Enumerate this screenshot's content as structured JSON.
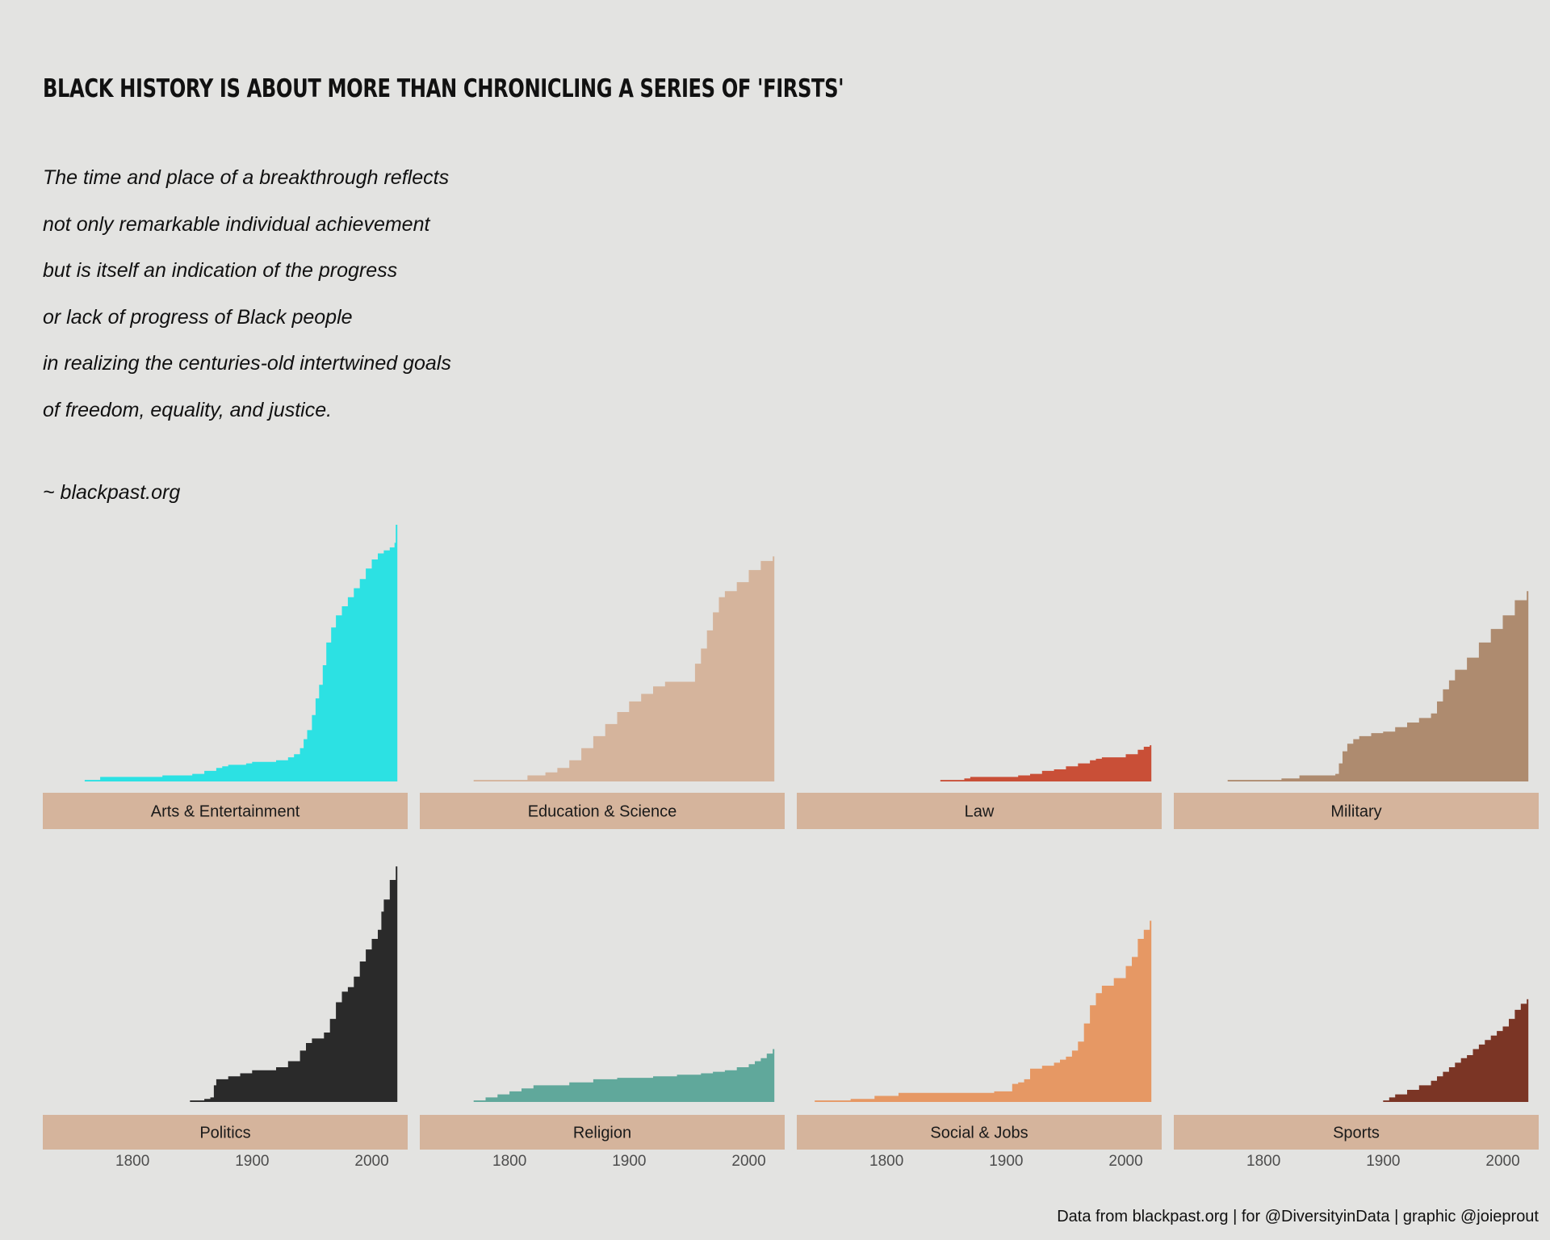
{
  "title": "BLACK HISTORY IS ABOUT MORE THAN CHRONICLING A SERIES OF 'FIRSTS'",
  "quote_lines": [
    "The time and place of a breakthrough reflects",
    "not only remarkable individual achievement",
    "but is itself an indication of the progress",
    "or lack of progress of Black people",
    "in realizing the centuries-old intertwined goals",
    "of freedom, equality, and justice."
  ],
  "source": "~ blackpast.org",
  "caption": "Data from blackpast.org | for @DiversityinData | graphic @joieprout",
  "colors": {
    "background": "#e3e3e1",
    "strip": "#d5b49c"
  },
  "chart_data": {
    "type": "area",
    "style": "step",
    "layout": "facet grid 2 rows x 4 columns, shared axes",
    "xlabel": "",
    "ylabel": "",
    "xlim": [
      1725,
      2030
    ],
    "ylim": [
      0,
      170
    ],
    "x_ticks": [
      1800,
      1900,
      2000
    ],
    "grid": false,
    "legend": "none",
    "series": [
      {
        "name": "Arts & Entertainment",
        "color": "#2ce1e3",
        "x": [
          1760,
          1773,
          1800,
          1825,
          1850,
          1860,
          1870,
          1875,
          1880,
          1895,
          1900,
          1920,
          1930,
          1935,
          1940,
          1943,
          1946,
          1950,
          1953,
          1956,
          1959,
          1962,
          1966,
          1970,
          1975,
          1980,
          1985,
          1990,
          1995,
          2000,
          2005,
          2010,
          2015,
          2019,
          2020
        ],
        "y": [
          1,
          3,
          3,
          4,
          5,
          7,
          9,
          10,
          11,
          12,
          13,
          14,
          16,
          18,
          22,
          28,
          34,
          44,
          55,
          64,
          77,
          92,
          102,
          110,
          116,
          122,
          128,
          134,
          141,
          147,
          151,
          153,
          155,
          158,
          170
        ]
      },
      {
        "name": "Education & Science",
        "color": "#d5b49c",
        "x": [
          1770,
          1800,
          1815,
          1830,
          1840,
          1850,
          1860,
          1870,
          1880,
          1890,
          1900,
          1910,
          1920,
          1930,
          1950,
          1955,
          1960,
          1965,
          1970,
          1975,
          1980,
          1990,
          2000,
          2010,
          2020
        ],
        "y": [
          1,
          1,
          4,
          6,
          9,
          14,
          22,
          30,
          38,
          46,
          53,
          58,
          63,
          66,
          66,
          78,
          88,
          100,
          112,
          122,
          126,
          132,
          140,
          146,
          149
        ]
      },
      {
        "name": "Law",
        "color": "#c94f37",
        "x": [
          1845,
          1865,
          1870,
          1890,
          1910,
          1920,
          1930,
          1940,
          1950,
          1960,
          1970,
          1975,
          1980,
          2000,
          2010,
          2015,
          2020
        ],
        "y": [
          1,
          2,
          3,
          3,
          4,
          5,
          7,
          8,
          10,
          12,
          14,
          15,
          16,
          18,
          21,
          23,
          24
        ]
      },
      {
        "name": "Military",
        "color": "#ae8b6f",
        "x": [
          1770,
          1800,
          1815,
          1830,
          1860,
          1863,
          1866,
          1870,
          1875,
          1880,
          1890,
          1900,
          1910,
          1920,
          1930,
          1940,
          1945,
          1950,
          1955,
          1960,
          1970,
          1980,
          1990,
          2000,
          2010,
          2020
        ],
        "y": [
          1,
          1,
          2,
          4,
          5,
          12,
          20,
          25,
          28,
          30,
          32,
          33,
          36,
          39,
          42,
          45,
          53,
          61,
          67,
          74,
          82,
          92,
          101,
          110,
          120,
          126
        ]
      },
      {
        "name": "Politics",
        "color": "#2a2a2a",
        "x": [
          1848,
          1860,
          1865,
          1868,
          1870,
          1880,
          1890,
          1900,
          1920,
          1930,
          1940,
          1945,
          1950,
          1960,
          1965,
          1970,
          1975,
          1980,
          1985,
          1990,
          1995,
          2000,
          2005,
          2008,
          2010,
          2015,
          2020
        ],
        "y": [
          1,
          2,
          3,
          11,
          15,
          17,
          19,
          21,
          23,
          27,
          34,
          39,
          42,
          46,
          55,
          66,
          73,
          76,
          83,
          93,
          101,
          108,
          114,
          126,
          134,
          147,
          156
        ]
      },
      {
        "name": "Religion",
        "color": "#60a89b",
        "x": [
          1770,
          1780,
          1790,
          1800,
          1810,
          1820,
          1850,
          1870,
          1890,
          1920,
          1940,
          1960,
          1970,
          1980,
          1990,
          2000,
          2005,
          2010,
          2015,
          2020
        ],
        "y": [
          1,
          3,
          5,
          7,
          9,
          11,
          13,
          15,
          16,
          17,
          18,
          19,
          20,
          21,
          23,
          25,
          27,
          29,
          32,
          35
        ]
      },
      {
        "name": "Social & Jobs",
        "color": "#e69864",
        "x": [
          1740,
          1770,
          1790,
          1810,
          1830,
          1860,
          1890,
          1905,
          1910,
          1915,
          1920,
          1930,
          1940,
          1945,
          1950,
          1955,
          1960,
          1965,
          1970,
          1975,
          1980,
          1990,
          2000,
          2005,
          2010,
          2015,
          2020
        ],
        "y": [
          1,
          2,
          4,
          6,
          6,
          6,
          7,
          12,
          13,
          15,
          22,
          24,
          26,
          28,
          30,
          34,
          40,
          52,
          64,
          72,
          77,
          82,
          90,
          96,
          108,
          114,
          120
        ]
      },
      {
        "name": "Sports",
        "color": "#7b3525",
        "x": [
          1900,
          1905,
          1910,
          1920,
          1930,
          1940,
          1945,
          1950,
          1955,
          1960,
          1965,
          1970,
          1975,
          1980,
          1985,
          1990,
          1995,
          2000,
          2005,
          2010,
          2015,
          2020
        ],
        "y": [
          1,
          3,
          5,
          8,
          11,
          14,
          17,
          20,
          23,
          26,
          29,
          31,
          35,
          38,
          41,
          44,
          47,
          50,
          55,
          61,
          65,
          68
        ]
      }
    ]
  }
}
